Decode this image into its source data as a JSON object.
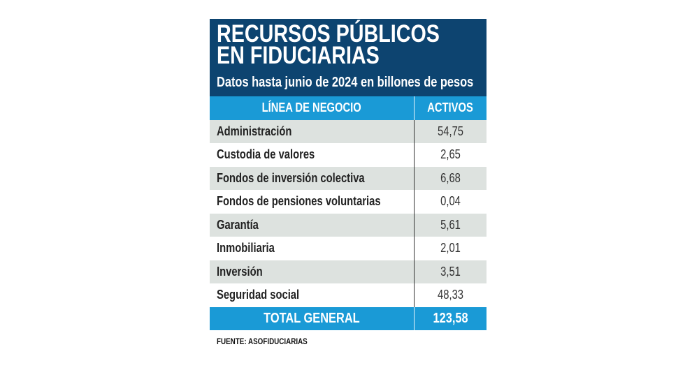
{
  "title_line1": "RECURSOS PÚBLICOS",
  "title_line2": "EN FIDUCIARIAS",
  "subtitle": "Datos hasta junio de 2024 en billones de pesos",
  "colors": {
    "header_bg": "#0d4470",
    "accent": "#1a9ad6",
    "row_alt": "#dde2df"
  },
  "chart_data": {
    "type": "table",
    "columns": [
      "LÍNEA DE NEGOCIO",
      "ACTIVOS"
    ],
    "rows": [
      [
        "Administración",
        "54,75"
      ],
      [
        "Custodia de valores",
        "2,65"
      ],
      [
        "Fondos de inversión colectiva",
        "6,68"
      ],
      [
        "Fondos de pensiones voluntarias",
        "0,04"
      ],
      [
        "Garantía",
        "5,61"
      ],
      [
        "Inmobiliaria",
        "2,01"
      ],
      [
        "Inversión",
        "3,51"
      ],
      [
        "Seguridad social",
        "48,33"
      ]
    ],
    "total": [
      "TOTAL GENERAL",
      "123,58"
    ]
  },
  "source": "FUENTE: ASOFIDUCIARIAS"
}
